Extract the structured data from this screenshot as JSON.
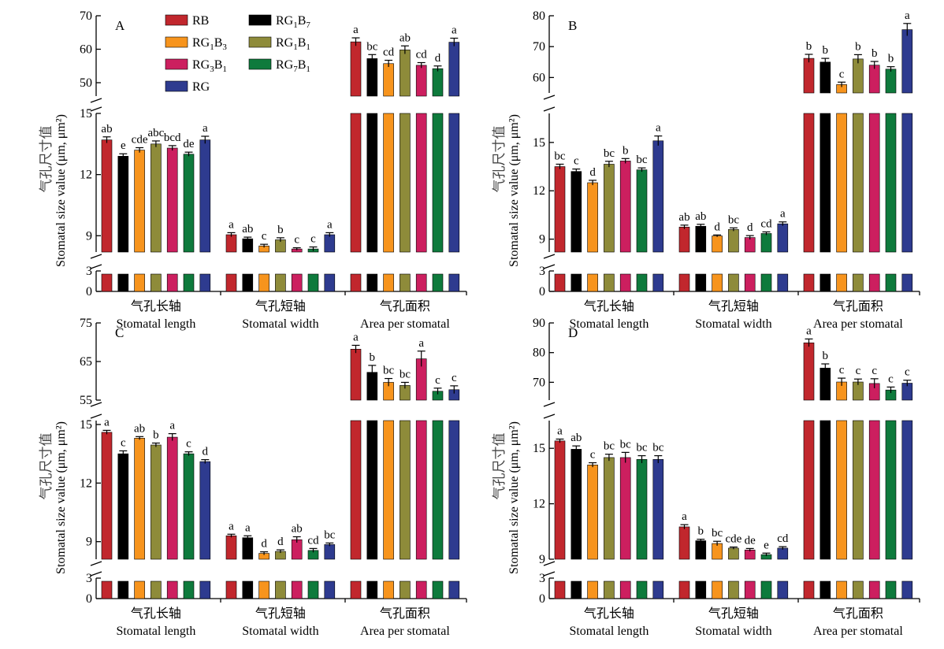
{
  "chart_data": {
    "type": "bar",
    "legend": {
      "placement": "top-left (panel A)",
      "entries": [
        {
          "id": "RB",
          "name": "RB",
          "color": "#c1272d"
        },
        {
          "id": "RG1B7",
          "name": "RG",
          "sub1": "1",
          "mid": "B",
          "sub2": "7",
          "color": "#000000"
        },
        {
          "id": "RG1B3",
          "name": "RG",
          "sub1": "1",
          "mid": "B",
          "sub2": "3",
          "color": "#f7941d"
        },
        {
          "id": "RG1B1",
          "name": "RG",
          "sub1": "1",
          "mid": "B",
          "sub2": "1",
          "color": "#8e8b3a"
        },
        {
          "id": "RG3B1",
          "name": "RG",
          "sub1": "3",
          "mid": "B",
          "sub2": "1",
          "color": "#cc1f5f"
        },
        {
          "id": "RG7B1",
          "name": "RG",
          "sub1": "7",
          "mid": "B",
          "sub2": "1",
          "color": "#0e7a3c"
        },
        {
          "id": "RG",
          "name": "RG",
          "color": "#2e3b8f"
        }
      ]
    },
    "series_order": [
      "RB",
      "RG1B7",
      "RG1B3",
      "RG1B1",
      "RG3B1",
      "RG7B1",
      "RG"
    ],
    "categories": [
      {
        "cn": "气孔长轴",
        "en": "Stomatal length"
      },
      {
        "cn": "气孔短轴",
        "en": "Stomatal width"
      },
      {
        "cn": "气孔面积",
        "en": "Area per stomatal"
      }
    ],
    "ylabel_cn": "气孔尺寸值",
    "ylabel_en": "Stomatal size value (μm, μm²)",
    "panels": [
      {
        "letter": "A",
        "broken_axis": {
          "lower": {
            "range": [
              0,
              3
            ],
            "ticks": [
              0,
              3
            ]
          },
          "middle": {
            "range": [
              8.2,
              15
            ],
            "ticks": [
              9,
              12,
              15
            ]
          },
          "upper": {
            "range": [
              46,
              70
            ],
            "ticks": [
              50,
              60,
              70
            ]
          }
        },
        "groups": [
          {
            "values": [
              13.7,
              12.9,
              13.2,
              13.5,
              13.3,
              13.0,
              13.7
            ],
            "errors": [
              0.15,
              0.12,
              0.12,
              0.15,
              0.12,
              0.1,
              0.18
            ],
            "labels": [
              "ab",
              "e",
              "cde",
              "abc",
              "bcd",
              "de",
              "a"
            ]
          },
          {
            "values": [
              9.05,
              8.85,
              8.5,
              8.8,
              8.35,
              8.35,
              9.05
            ],
            "errors": [
              0.1,
              0.08,
              0.08,
              0.1,
              0.06,
              0.1,
              0.1
            ],
            "labels": [
              "a",
              "ab",
              "c",
              "b",
              "c",
              "c",
              "a"
            ]
          },
          {
            "values": [
              62.2,
              57.2,
              55.7,
              59.8,
              55.2,
              54.2,
              62.1
            ],
            "errors": [
              1.2,
              1.2,
              1.0,
              1.2,
              0.8,
              0.8,
              1.2
            ],
            "labels": [
              "a",
              "bc",
              "cd",
              "ab",
              "cd",
              "d",
              "a"
            ]
          }
        ]
      },
      {
        "letter": "B",
        "broken_axis": {
          "lower": {
            "range": [
              0,
              3
            ],
            "ticks": [
              0,
              3
            ]
          },
          "middle": {
            "range": [
              8.2,
              16.8
            ],
            "ticks": [
              9,
              12,
              15
            ]
          },
          "upper": {
            "range": [
              55,
              80
            ],
            "ticks": [
              60,
              70,
              80
            ]
          }
        },
        "groups": [
          {
            "values": [
              13.5,
              13.2,
              12.5,
              13.65,
              13.85,
              13.3,
              15.1
            ],
            "errors": [
              0.15,
              0.15,
              0.15,
              0.18,
              0.15,
              0.12,
              0.3
            ],
            "labels": [
              "bc",
              "c",
              "d",
              "bc",
              "b",
              "bc",
              "a"
            ]
          },
          {
            "values": [
              9.75,
              9.8,
              9.2,
              9.6,
              9.1,
              9.35,
              9.95
            ],
            "errors": [
              0.12,
              0.12,
              0.06,
              0.1,
              0.12,
              0.1,
              0.12
            ],
            "labels": [
              "ab",
              "ab",
              "d",
              "bc",
              "d",
              "cd",
              "a"
            ]
          },
          {
            "values": [
              66.2,
              65.0,
              57.7,
              66.0,
              64.0,
              62.7,
              75.5
            ],
            "errors": [
              1.3,
              1.2,
              0.8,
              1.4,
              1.2,
              0.8,
              2.0
            ],
            "labels": [
              "b",
              "b",
              "c",
              "b",
              "b",
              "b",
              "a"
            ]
          }
        ]
      },
      {
        "letter": "C",
        "broken_axis": {
          "lower": {
            "range": [
              0,
              3
            ],
            "ticks": [
              0,
              3
            ]
          },
          "middle": {
            "range": [
              8.1,
              15.2
            ],
            "ticks": [
              9,
              12,
              15
            ]
          },
          "upper": {
            "range": [
              55,
              75
            ],
            "ticks": [
              55,
              65,
              75
            ]
          }
        },
        "groups": [
          {
            "values": [
              14.6,
              13.5,
              14.3,
              13.95,
              14.35,
              13.5,
              13.1
            ],
            "errors": [
              0.1,
              0.15,
              0.08,
              0.1,
              0.18,
              0.1,
              0.1
            ],
            "labels": [
              "a",
              "c",
              "ab",
              "b",
              "a",
              "c",
              "d"
            ]
          },
          {
            "values": [
              9.3,
              9.2,
              8.4,
              8.5,
              9.1,
              8.55,
              8.85
            ],
            "errors": [
              0.08,
              0.1,
              0.08,
              0.08,
              0.15,
              0.1,
              0.08
            ],
            "labels": [
              "a",
              "a",
              "d",
              "d",
              "ab",
              "cd",
              "bc"
            ]
          },
          {
            "values": [
              68.2,
              62.2,
              59.6,
              58.8,
              65.7,
              57.3,
              57.7
            ],
            "errors": [
              1.0,
              1.8,
              1.0,
              0.8,
              2.0,
              0.8,
              1.0
            ],
            "labels": [
              "a",
              "b",
              "bc",
              "bc",
              "a",
              "c",
              "c"
            ]
          }
        ]
      },
      {
        "letter": "D",
        "broken_axis": {
          "lower": {
            "range": [
              0,
              3
            ],
            "ticks": [
              0,
              3
            ]
          },
          "middle": {
            "range": [
              9,
              16.5
            ],
            "ticks": [
              9,
              12,
              15
            ]
          },
          "upper": {
            "range": [
              64,
              90
            ],
            "ticks": [
              70,
              80,
              90
            ]
          }
        },
        "groups": [
          {
            "values": [
              15.4,
              14.95,
              14.1,
              14.5,
              14.5,
              14.4,
              14.4
            ],
            "errors": [
              0.1,
              0.18,
              0.12,
              0.18,
              0.28,
              0.2,
              0.2
            ],
            "labels": [
              "a",
              "ab",
              "c",
              "bc",
              "bc",
              "bc",
              "bc"
            ]
          },
          {
            "values": [
              10.75,
              10.0,
              9.85,
              9.6,
              9.5,
              9.25,
              9.6
            ],
            "errors": [
              0.12,
              0.08,
              0.12,
              0.06,
              0.08,
              0.08,
              0.08
            ],
            "labels": [
              "a",
              "b",
              "bc",
              "cde",
              "de",
              "e",
              "cd"
            ]
          },
          {
            "values": [
              83.3,
              74.8,
              70.1,
              70.1,
              69.6,
              67.4,
              69.7
            ],
            "errors": [
              1.3,
              1.4,
              1.3,
              1.0,
              1.6,
              1.0,
              1.0
            ],
            "labels": [
              "a",
              "b",
              "c",
              "c",
              "c",
              "c",
              "c"
            ]
          }
        ]
      }
    ]
  }
}
